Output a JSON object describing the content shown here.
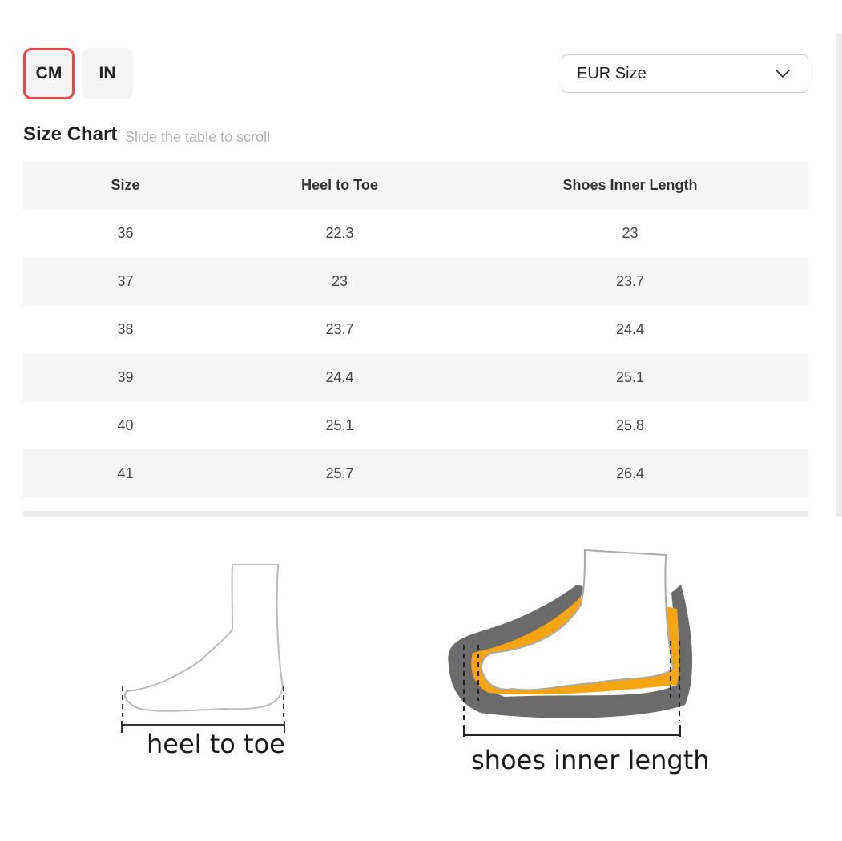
{
  "units": {
    "options": [
      "CM",
      "IN"
    ],
    "selected": "CM",
    "accent": "#e5484d"
  },
  "size_system": {
    "selected": "EUR Size"
  },
  "chart": {
    "title": "Size Chart",
    "hint": "Slide the table to scroll"
  },
  "table": {
    "headers": [
      "Size",
      "Heel to Toe",
      "Shoes Inner Length"
    ],
    "rows": [
      [
        "36",
        "22.3",
        "23"
      ],
      [
        "37",
        "23",
        "23.7"
      ],
      [
        "38",
        "23.7",
        "24.4"
      ],
      [
        "39",
        "24.4",
        "25.1"
      ],
      [
        "40",
        "25.1",
        "25.8"
      ],
      [
        "41",
        "25.7",
        "26.4"
      ]
    ]
  },
  "illustrations": {
    "heel_to_toe": "heel to toe",
    "inner_length": "shoes inner length"
  }
}
